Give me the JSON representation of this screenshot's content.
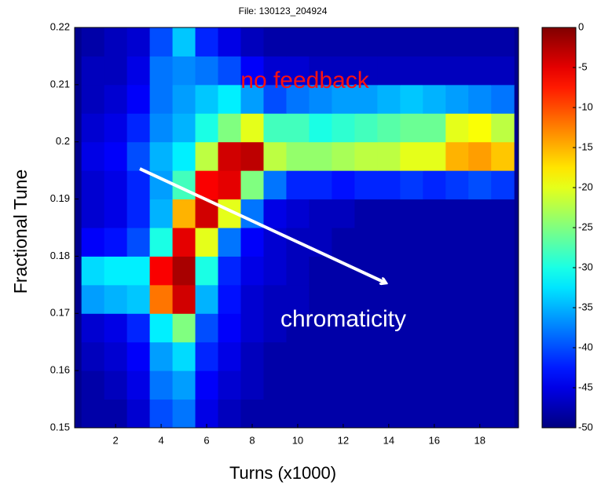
{
  "chart_data": {
    "type": "heatmap",
    "title": "File: 130123_204924",
    "x_label": "Turns (x1000)",
    "y_label": "Fractional Tune",
    "annotations": [
      "no feedback",
      "chromaticity"
    ],
    "x": [
      1,
      2,
      3,
      4,
      5,
      6,
      7,
      8,
      9,
      10,
      11,
      12,
      13,
      14,
      15,
      16,
      17,
      18,
      19
    ],
    "y": [
      0.1525,
      0.1575,
      0.1625,
      0.1675,
      0.1725,
      0.1775,
      0.1825,
      0.1875,
      0.1925,
      0.1975,
      0.2025,
      0.2075,
      0.2125,
      0.2175
    ],
    "z": [
      [
        -48,
        -48,
        -46,
        -40,
        -38,
        -45,
        -47,
        -48,
        -48,
        -48,
        -48,
        -48,
        -48,
        -48,
        -48,
        -48,
        -48,
        -48,
        -48
      ],
      [
        -48,
        -47,
        -45,
        -38,
        -36,
        -44,
        -46,
        -47,
        -48,
        -48,
        -48,
        -48,
        -48,
        -48,
        -48,
        -48,
        -48,
        -48,
        -48
      ],
      [
        -47,
        -46,
        -44,
        -36,
        -33,
        -42,
        -45,
        -47,
        -48,
        -48,
        -48,
        -48,
        -48,
        -48,
        -48,
        -48,
        -48,
        -48,
        -48
      ],
      [
        -46,
        -45,
        -42,
        -32,
        -25,
        -40,
        -44,
        -46,
        -47,
        -48,
        -48,
        -48,
        -48,
        -48,
        -48,
        -48,
        -48,
        -48,
        -48
      ],
      [
        -36,
        -35,
        -34,
        -12,
        -4,
        -35,
        -43,
        -46,
        -47,
        -47,
        -48,
        -48,
        -48,
        -48,
        -48,
        -48,
        -48,
        -48,
        -48
      ],
      [
        -33,
        -32,
        -32,
        -6,
        -2,
        -30,
        -42,
        -45,
        -46,
        -47,
        -48,
        -48,
        -48,
        -48,
        -48,
        -48,
        -48,
        -48,
        -48
      ],
      [
        -44,
        -43,
        -40,
        -30,
        -5,
        -20,
        -38,
        -44,
        -46,
        -47,
        -47,
        -48,
        -48,
        -48,
        -48,
        -48,
        -48,
        -48,
        -48
      ],
      [
        -46,
        -45,
        -42,
        -35,
        -15,
        -4,
        -20,
        -38,
        -45,
        -46,
        -47,
        -47,
        -48,
        -48,
        -48,
        -48,
        -48,
        -48,
        -48
      ],
      [
        -46,
        -45,
        -42,
        -36,
        -28,
        -6,
        -5,
        -25,
        -38,
        -42,
        -42,
        -43,
        -42,
        -42,
        -41,
        -42,
        -41,
        -40,
        -41
      ],
      [
        -45,
        -44,
        -40,
        -35,
        -32,
        -22,
        -4,
        -3,
        -22,
        -24,
        -24,
        -23,
        -22,
        -22,
        -20,
        -20,
        -15,
        -14,
        -16
      ],
      [
        -46,
        -45,
        -42,
        -37,
        -35,
        -30,
        -25,
        -20,
        -28,
        -28,
        -30,
        -29,
        -28,
        -27,
        -26,
        -26,
        -20,
        -19,
        -22
      ],
      [
        -47,
        -46,
        -44,
        -38,
        -36,
        -34,
        -32,
        -36,
        -40,
        -38,
        -37,
        -36,
        -36,
        -35,
        -34,
        -35,
        -36,
        -37,
        -38
      ],
      [
        -47,
        -47,
        -45,
        -38,
        -37,
        -38,
        -40,
        -44,
        -46,
        -46,
        -47,
        -47,
        -47,
        -47,
        -47,
        -47,
        -47,
        -47,
        -47
      ],
      [
        -48,
        -47,
        -46,
        -40,
        -34,
        -42,
        -45,
        -47,
        -48,
        -48,
        -48,
        -48,
        -48,
        -48,
        -48,
        -48,
        -48,
        -48,
        -48
      ]
    ],
    "xlim": [
      0.2,
      19.7
    ],
    "xticks": [
      2,
      4,
      6,
      8,
      10,
      12,
      14,
      16,
      18
    ],
    "ylim": [
      0.15,
      0.22
    ],
    "yticks": [
      0.15,
      0.16,
      0.17,
      0.18,
      0.19,
      0.2,
      0.21,
      0.22
    ],
    "colormap": "jet",
    "clim": [
      -50,
      0
    ],
    "cticks": [
      0,
      -5,
      -10,
      -15,
      -20,
      -25,
      -30,
      -35,
      -40,
      -45,
      -50
    ]
  }
}
